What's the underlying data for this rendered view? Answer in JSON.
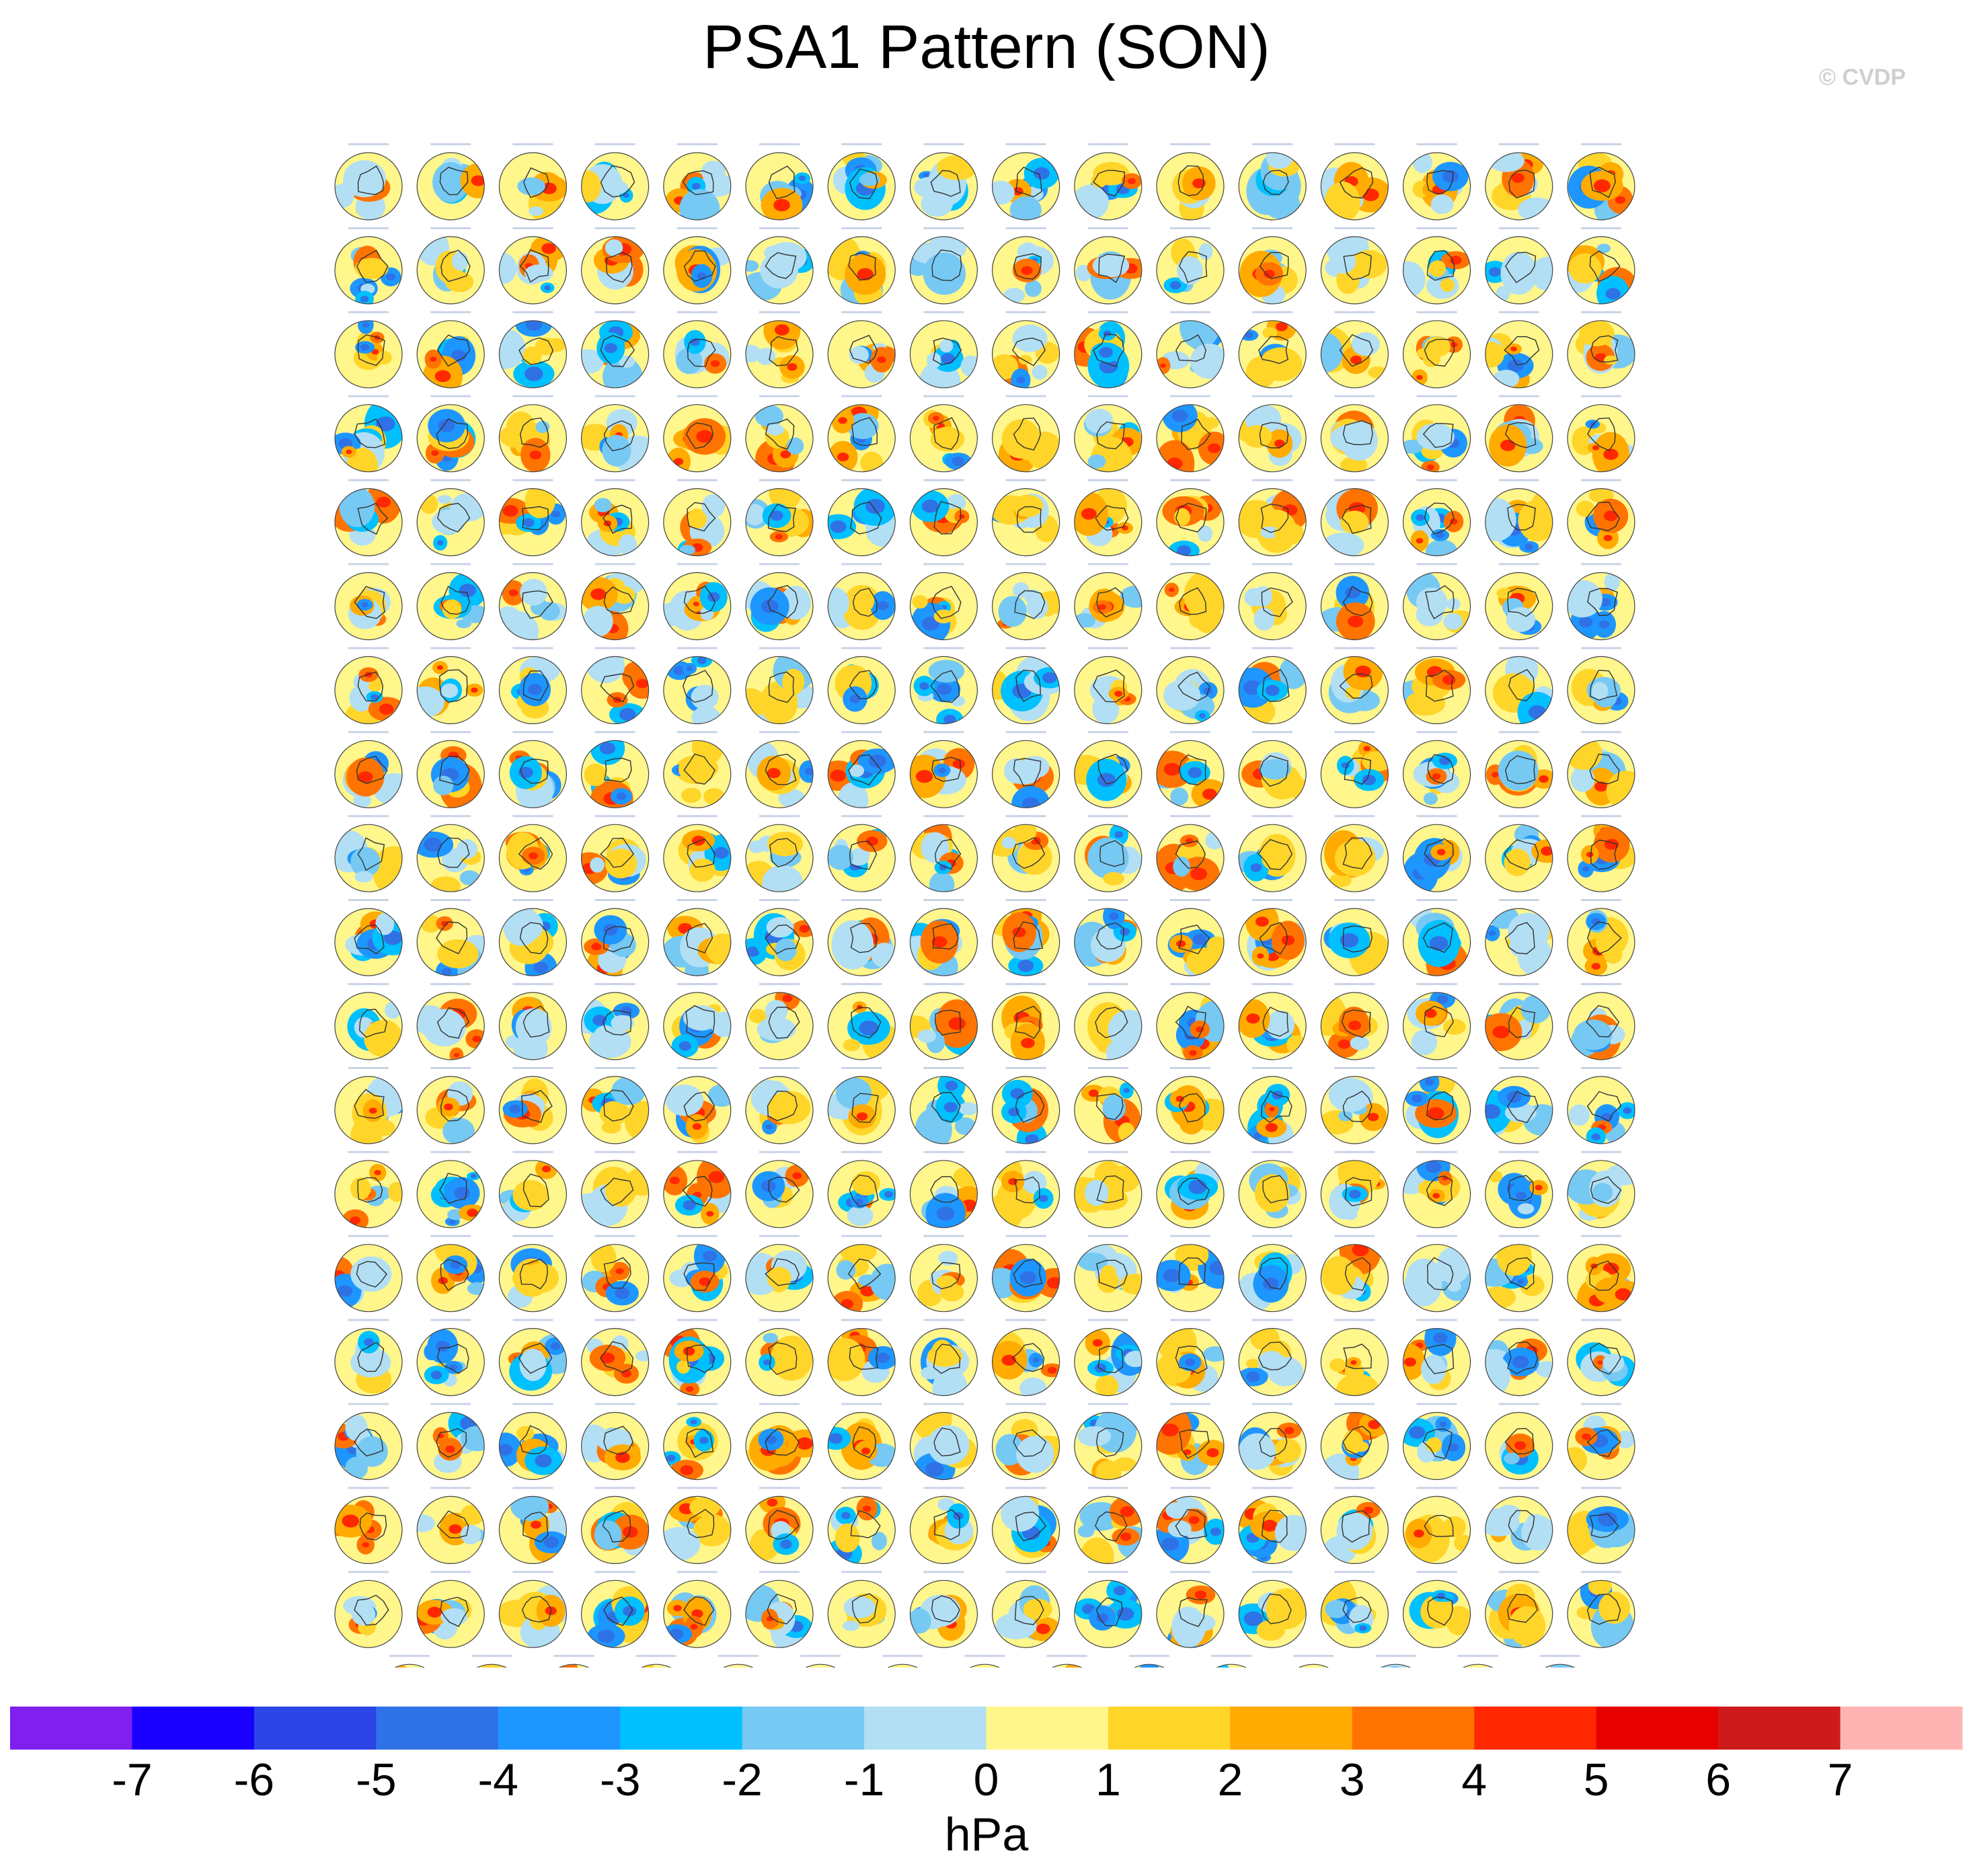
{
  "title": "PSA1 Pattern (SON)",
  "copyright": "© CVDP",
  "chart_data": {
    "type": "heatmap",
    "description_of_panels": "",
    "panel_rows": 19,
    "panel_columns": 16,
    "last_row_panels": 15,
    "total_panels": 303,
    "colorbar": {
      "unit": "hPa",
      "ticks": [
        "-7",
        "-6",
        "-5",
        "-4",
        "-3",
        "-2",
        "-1",
        "0",
        "1",
        "2",
        "3",
        "4",
        "5",
        "6",
        "7"
      ],
      "colors": [
        "#7f1ff0",
        "#1b00ff",
        "#2b45e6",
        "#2f72e6",
        "#1e96ff",
        "#00c0ff",
        "#76c9f3",
        "#b2dff4",
        "#fff68c",
        "#ffd52a",
        "#ffab00",
        "#ff7400",
        "#ff2800",
        "#e60000",
        "#cd1b1b",
        "#ffb4b4"
      ]
    }
  }
}
